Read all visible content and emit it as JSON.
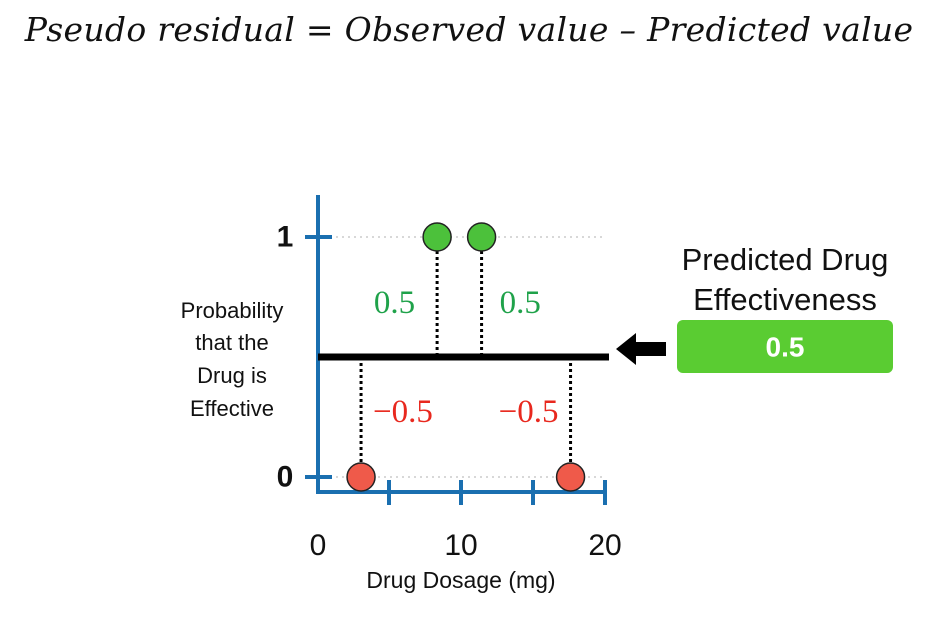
{
  "formula": "Pseudo residual = Observed value – Predicted value",
  "chart_data": {
    "type": "scatter",
    "y_axis_label": [
      "Probability",
      "that the",
      "Drug is",
      "Effective"
    ],
    "x_axis_label": "Drug Dosage (mg)",
    "x_ticks": [
      "0",
      "10",
      "20"
    ],
    "y_ticks": [
      "1",
      "0"
    ],
    "xlim": [
      0,
      20
    ],
    "ylim": [
      0,
      1
    ],
    "prediction_line": 0.5,
    "points": [
      {
        "x": 3,
        "y": 0,
        "residual": "−0.5",
        "color": "#ef5a4a"
      },
      {
        "x": 8.3,
        "y": 1,
        "residual": "0.5",
        "color": "#4cc13b"
      },
      {
        "x": 11.4,
        "y": 1,
        "residual": "0.5",
        "color": "#4cc13b"
      },
      {
        "x": 17.6,
        "y": 0,
        "residual": "−0.5",
        "color": "#ef5a4a"
      }
    ],
    "colors": {
      "axis": "#1a6fb0",
      "positive": "#1fa24a",
      "negative": "#e8281e",
      "badge": "#5acc32"
    }
  },
  "prediction_panel": {
    "title_lines": [
      "Predicted Drug",
      "Effectiveness"
    ],
    "value": "0.5",
    "arrow_icon": "left-arrow-icon"
  }
}
